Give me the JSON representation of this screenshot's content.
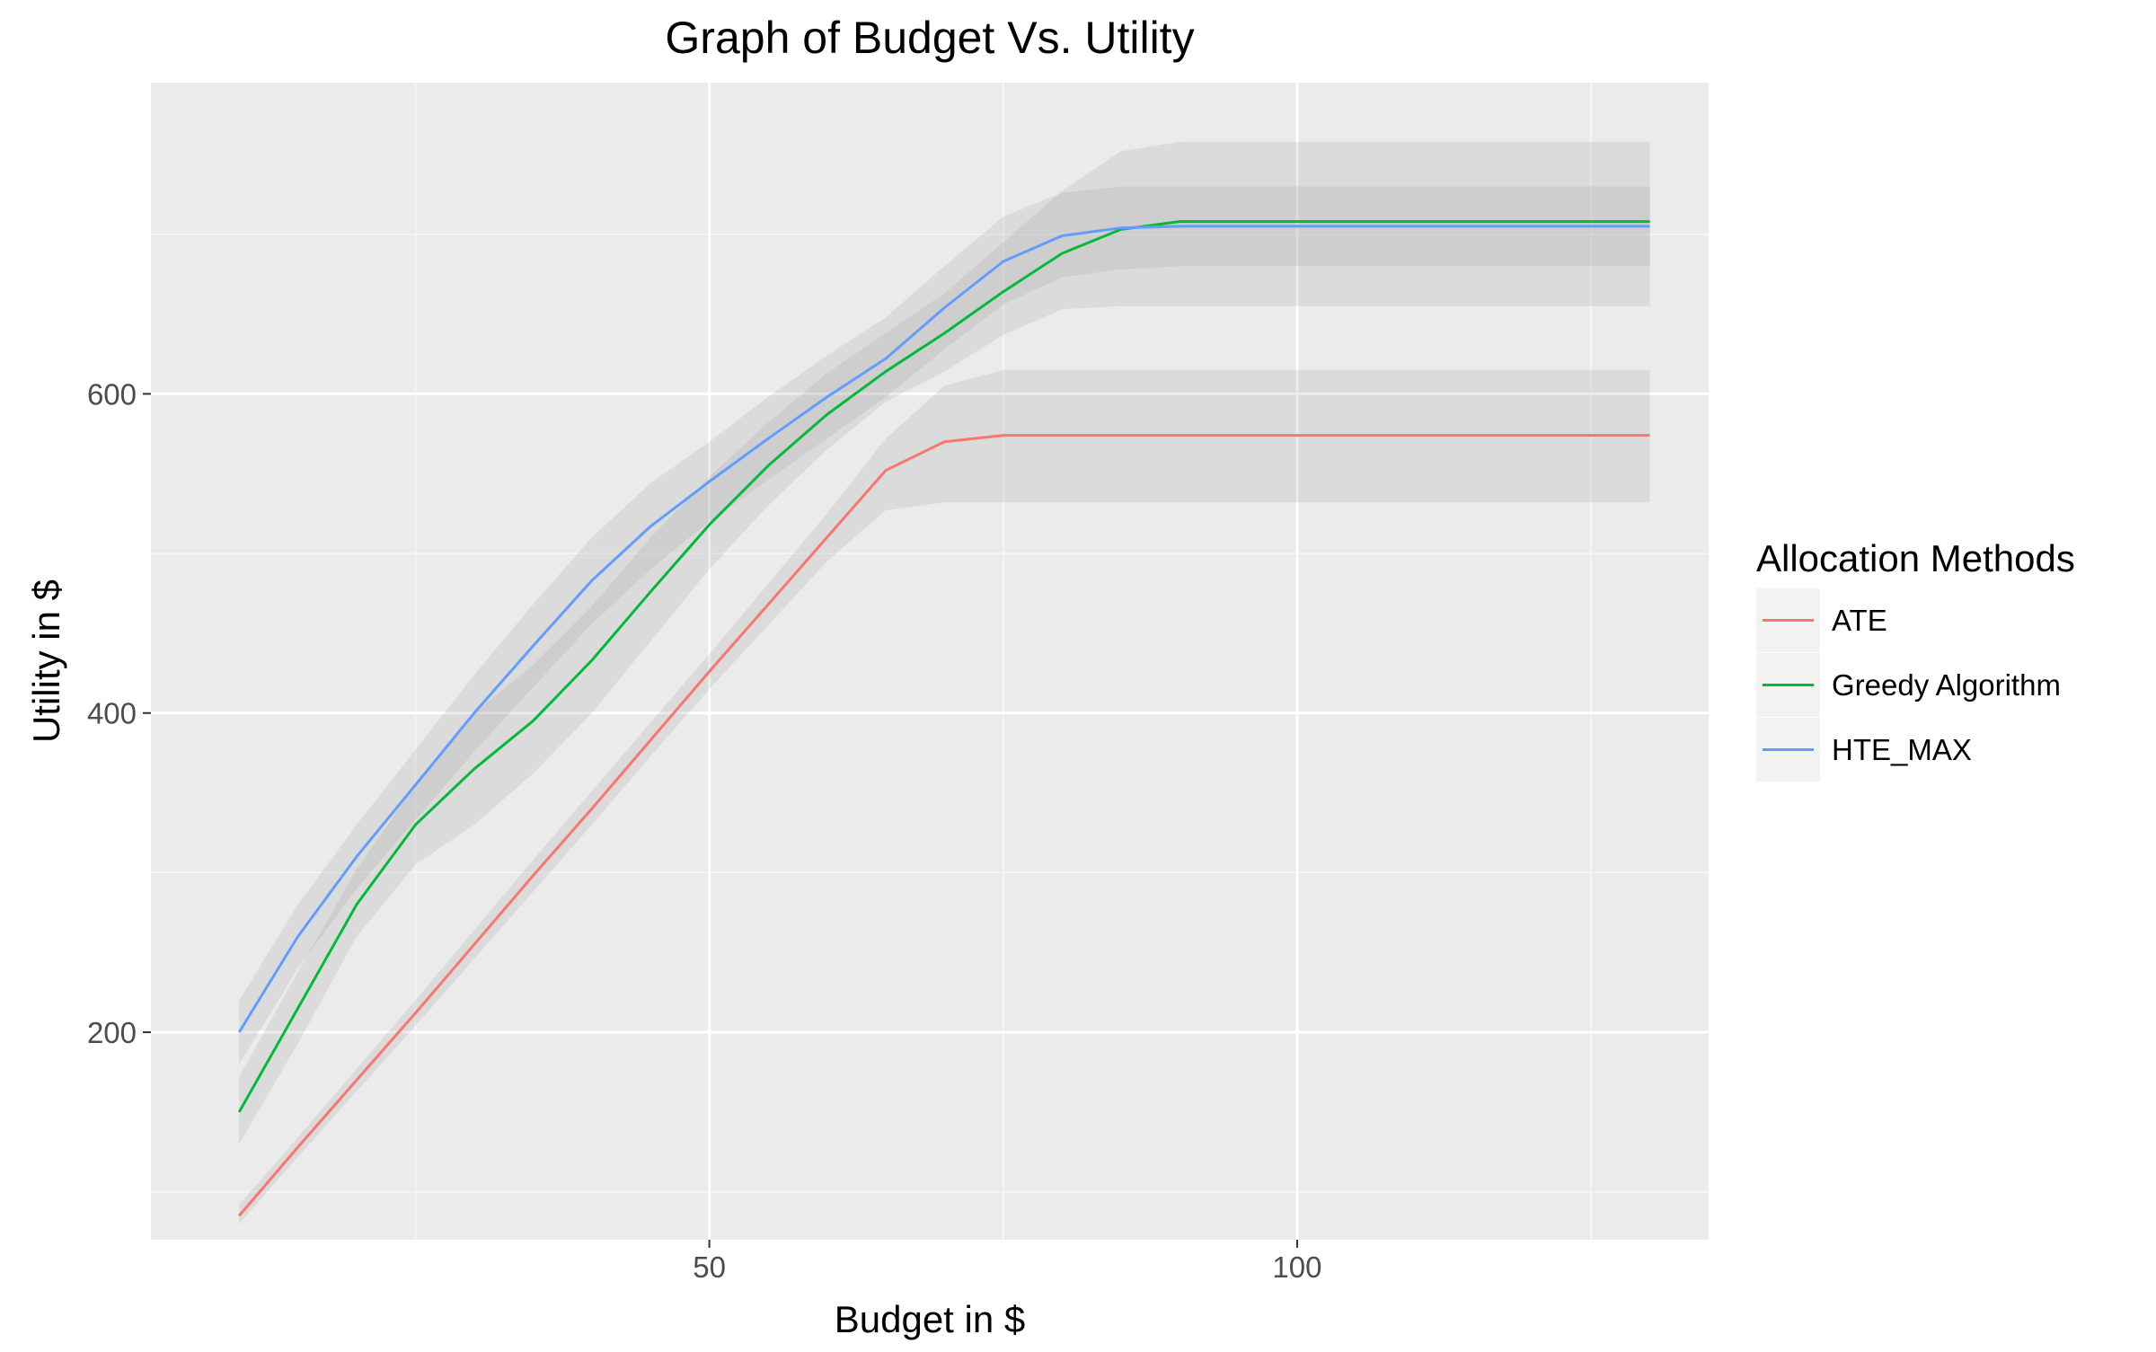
{
  "chart_data": {
    "type": "line",
    "title": "Graph of Budget Vs. Utility",
    "xlabel": "Budget in $",
    "ylabel": "Utility in $",
    "xlim": [
      2.5,
      135
    ],
    "ylim": [
      70,
      795
    ],
    "x_ticks": [
      50,
      100
    ],
    "y_ticks": [
      200,
      400,
      600
    ],
    "grid": true,
    "legend_position": "right",
    "legend_title": "Allocation Methods",
    "x": [
      10,
      15,
      20,
      25,
      30,
      35,
      40,
      45,
      50,
      55,
      60,
      65,
      70,
      75,
      80,
      85,
      90,
      95,
      100,
      105,
      110,
      115,
      120,
      125,
      130
    ],
    "series": [
      {
        "name": "ATE",
        "color": "#F8766D",
        "values": [
          85,
          128,
          170,
          212,
          255,
          298,
          340,
          383,
          426,
          468,
          510,
          552,
          570,
          574,
          574,
          574,
          574,
          574,
          574,
          574,
          574,
          574,
          574,
          574,
          574
        ],
        "band_lower": [
          80,
          122,
          163,
          204,
          246,
          288,
          330,
          373,
          415,
          455,
          495,
          527,
          532,
          532,
          532,
          532,
          532,
          532,
          532,
          532,
          532,
          532,
          532,
          532,
          532
        ],
        "band_upper": [
          92,
          134,
          177,
          220,
          264,
          308,
          351,
          394,
          437,
          481,
          525,
          572,
          605,
          615,
          615,
          615,
          615,
          615,
          615,
          615,
          615,
          615,
          615,
          615,
          615
        ]
      },
      {
        "name": "Greedy Algorithm",
        "color": "#00BA38",
        "values": [
          150,
          215,
          280,
          330,
          365,
          395,
          433,
          476,
          518,
          555,
          587,
          614,
          638,
          664,
          688,
          703,
          708,
          708,
          708,
          708,
          708,
          708,
          708,
          708,
          708
        ],
        "band_lower": [
          130,
          193,
          260,
          305,
          330,
          362,
          400,
          445,
          490,
          530,
          565,
          595,
          614,
          637,
          653,
          655,
          655,
          655,
          655,
          655,
          655,
          655,
          655,
          655,
          655
        ],
        "band_upper": [
          172,
          238,
          302,
          355,
          400,
          430,
          467,
          510,
          548,
          582,
          613,
          638,
          663,
          695,
          727,
          752,
          758,
          758,
          758,
          758,
          758,
          758,
          758,
          758,
          758
        ]
      },
      {
        "name": "HTE_MAX",
        "color": "#619CFF",
        "values": [
          200,
          260,
          310,
          355,
          400,
          442,
          483,
          517,
          545,
          572,
          598,
          622,
          654,
          683,
          699,
          704,
          705,
          705,
          705,
          705,
          705,
          705,
          705,
          705,
          705
        ],
        "band_lower": [
          180,
          240,
          290,
          333,
          376,
          416,
          456,
          490,
          520,
          546,
          572,
          598,
          628,
          656,
          673,
          678,
          680,
          680,
          680,
          680,
          680,
          680,
          680,
          680,
          680
        ],
        "band_upper": [
          220,
          280,
          330,
          377,
          424,
          468,
          510,
          544,
          570,
          598,
          624,
          648,
          680,
          711,
          726,
          730,
          730,
          730,
          730,
          730,
          730,
          730,
          730,
          730,
          730
        ]
      }
    ]
  }
}
